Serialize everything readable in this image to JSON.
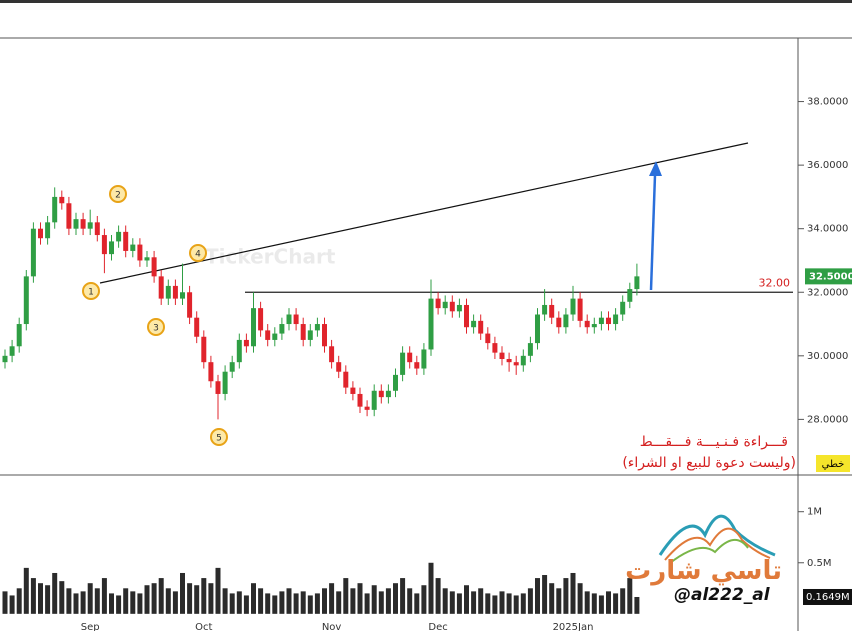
{
  "chart_data": {
    "type": "candlestick",
    "watermark": "TickerChart",
    "scale_label": "خطي",
    "up_color": "#2f9e44",
    "down_color": "#e0242c",
    "categories": [
      null,
      null,
      null,
      null,
      null,
      null,
      null,
      null,
      null,
      null,
      null,
      null,
      "Sep",
      null,
      null,
      null,
      null,
      null,
      null,
      null,
      null,
      null,
      null,
      null,
      null,
      null,
      null,
      null,
      "Oct",
      null,
      null,
      null,
      null,
      null,
      null,
      null,
      null,
      null,
      null,
      null,
      null,
      null,
      null,
      null,
      null,
      null,
      "Nov",
      null,
      null,
      null,
      null,
      null,
      null,
      null,
      null,
      null,
      null,
      null,
      null,
      null,
      null,
      "Dec",
      null,
      null,
      null,
      null,
      null,
      null,
      null,
      null,
      null,
      null,
      null,
      null,
      null,
      null,
      null,
      null,
      null,
      null,
      "2025Jan",
      null,
      null,
      null,
      null,
      null,
      null,
      null,
      null,
      null
    ],
    "open": [
      29.8,
      30.0,
      30.3,
      31.0,
      32.5,
      34.0,
      33.7,
      34.2,
      35.0,
      34.8,
      34.0,
      34.3,
      34.0,
      34.2,
      33.8,
      33.2,
      33.6,
      33.9,
      33.3,
      33.5,
      33.0,
      33.1,
      32.5,
      31.8,
      32.2,
      31.8,
      32.0,
      31.2,
      30.6,
      29.8,
      29.2,
      28.8,
      29.5,
      29.8,
      30.5,
      30.3,
      31.5,
      30.8,
      30.5,
      30.7,
      31.0,
      31.3,
      31.0,
      30.5,
      30.8,
      31.0,
      30.3,
      29.8,
      29.5,
      29.0,
      28.8,
      28.4,
      28.3,
      28.9,
      28.7,
      28.9,
      29.4,
      30.1,
      29.8,
      29.6,
      30.2,
      31.8,
      31.5,
      31.7,
      31.4,
      31.6,
      30.9,
      31.1,
      30.7,
      30.4,
      30.1,
      29.9,
      29.8,
      29.7,
      30.0,
      30.4,
      31.3,
      31.6,
      31.2,
      30.9,
      31.3,
      31.8,
      31.1,
      30.9,
      31.0,
      31.2,
      31.0,
      31.3,
      31.7,
      32.1
    ],
    "high": [
      30.2,
      30.5,
      31.2,
      32.7,
      34.2,
      34.2,
      34.4,
      35.3,
      35.2,
      35.0,
      34.5,
      34.5,
      34.6,
      34.4,
      34.0,
      33.8,
      34.1,
      34.1,
      33.7,
      33.7,
      33.3,
      33.3,
      32.7,
      32.4,
      32.4,
      32.9,
      32.2,
      31.4,
      30.8,
      30.0,
      29.4,
      29.7,
      30.0,
      30.7,
      30.7,
      32.0,
      31.7,
      31.0,
      30.9,
      31.2,
      31.5,
      31.5,
      31.2,
      31.0,
      31.2,
      31.2,
      30.5,
      30.0,
      29.7,
      29.2,
      29.0,
      28.6,
      29.1,
      29.1,
      29.1,
      29.6,
      30.3,
      30.3,
      30.0,
      30.4,
      32.4,
      32.0,
      31.9,
      31.9,
      31.8,
      31.8,
      31.3,
      31.3,
      30.9,
      30.6,
      30.3,
      30.1,
      30.0,
      30.2,
      30.6,
      31.5,
      32.1,
      31.8,
      31.4,
      31.5,
      32.2,
      32.0,
      31.3,
      31.2,
      31.4,
      31.4,
      31.5,
      31.9,
      32.3,
      32.9
    ],
    "low": [
      29.6,
      29.8,
      30.1,
      30.8,
      32.3,
      33.5,
      33.5,
      34.0,
      34.6,
      33.8,
      33.8,
      33.8,
      33.8,
      33.6,
      32.6,
      33.0,
      33.4,
      33.1,
      33.1,
      32.8,
      32.8,
      32.3,
      31.6,
      31.6,
      31.6,
      31.6,
      31.0,
      30.4,
      29.6,
      29.0,
      28.0,
      28.6,
      29.3,
      29.6,
      30.1,
      30.1,
      30.6,
      30.3,
      30.3,
      30.5,
      30.8,
      30.8,
      30.3,
      30.3,
      30.6,
      30.1,
      29.6,
      29.3,
      28.8,
      28.6,
      28.2,
      28.1,
      28.1,
      28.5,
      28.5,
      28.7,
      29.2,
      29.6,
      29.4,
      29.4,
      30.0,
      31.3,
      31.3,
      31.2,
      31.2,
      30.7,
      30.7,
      30.5,
      30.2,
      29.9,
      29.7,
      29.5,
      29.4,
      29.5,
      29.8,
      30.2,
      31.1,
      31.0,
      30.7,
      30.7,
      31.1,
      30.9,
      30.7,
      30.7,
      30.8,
      30.8,
      30.8,
      31.1,
      31.5,
      31.9
    ],
    "close": [
      30.0,
      30.3,
      31.0,
      32.5,
      34.0,
      33.7,
      34.2,
      35.0,
      34.8,
      34.0,
      34.3,
      34.0,
      34.2,
      33.8,
      33.2,
      33.6,
      33.9,
      33.3,
      33.5,
      33.0,
      33.1,
      32.5,
      31.8,
      32.2,
      31.8,
      32.0,
      31.2,
      30.6,
      29.8,
      29.2,
      28.8,
      29.5,
      29.8,
      30.5,
      30.3,
      31.5,
      30.8,
      30.5,
      30.7,
      31.0,
      31.3,
      31.0,
      30.5,
      30.8,
      31.0,
      30.3,
      29.8,
      29.5,
      29.0,
      28.8,
      28.4,
      28.3,
      28.9,
      28.7,
      28.9,
      29.4,
      30.1,
      29.8,
      29.6,
      30.2,
      31.8,
      31.5,
      31.7,
      31.4,
      31.6,
      30.9,
      31.1,
      30.7,
      30.4,
      30.1,
      29.9,
      29.8,
      29.7,
      30.0,
      30.4,
      31.3,
      31.6,
      31.2,
      30.9,
      31.3,
      31.8,
      31.1,
      30.9,
      31.0,
      31.2,
      31.0,
      31.3,
      31.7,
      32.1,
      32.5
    ],
    "current_label": "32.5000",
    "ylim": [
      26.25,
      40
    ],
    "yticks": [
      {
        "value": 28,
        "label": "28.0000"
      },
      {
        "value": 30,
        "label": "30.0000"
      },
      {
        "value": 32,
        "label": "32.0000"
      },
      {
        "value": 34,
        "label": "34.0000"
      },
      {
        "value": 36,
        "label": "36.0000"
      },
      {
        "value": 38,
        "label": "38.0000"
      }
    ],
    "hline": {
      "value": 32,
      "label": "32.00",
      "color": "#d42020"
    },
    "markers": [
      "1",
      "2",
      "3",
      "4",
      "5"
    ],
    "note": [
      "قـــراءة فـنـيـــة فـــقـــط",
      "(وليست دعوة للبيع او الشراء)"
    ],
    "volume": {
      "color": "#2b2b2b",
      "values": [
        0.22,
        0.18,
        0.25,
        0.45,
        0.35,
        0.3,
        0.28,
        0.4,
        0.32,
        0.25,
        0.2,
        0.22,
        0.3,
        0.25,
        0.35,
        0.2,
        0.18,
        0.25,
        0.22,
        0.2,
        0.28,
        0.3,
        0.35,
        0.25,
        0.22,
        0.4,
        0.3,
        0.28,
        0.35,
        0.3,
        0.45,
        0.25,
        0.2,
        0.22,
        0.18,
        0.3,
        0.25,
        0.2,
        0.18,
        0.22,
        0.25,
        0.2,
        0.22,
        0.18,
        0.2,
        0.25,
        0.3,
        0.22,
        0.35,
        0.25,
        0.3,
        0.2,
        0.28,
        0.22,
        0.25,
        0.3,
        0.35,
        0.25,
        0.2,
        0.28,
        0.5,
        0.35,
        0.25,
        0.22,
        0.2,
        0.28,
        0.22,
        0.25,
        0.2,
        0.18,
        0.22,
        0.2,
        0.18,
        0.2,
        0.25,
        0.35,
        0.38,
        0.3,
        0.25,
        0.35,
        0.4,
        0.3,
        0.22,
        0.2,
        0.18,
        0.22,
        0.2,
        0.25,
        0.35,
        0.1649
      ],
      "current_label": "0.1649M",
      "ylim": [
        -0.08,
        1.33
      ],
      "yticks": [
        {
          "value": 0.5,
          "label": "0.5M"
        },
        {
          "value": 1,
          "label": "1M"
        }
      ]
    }
  },
  "branding": {
    "name": "تاسي شارت",
    "handle": "@al222_al"
  }
}
